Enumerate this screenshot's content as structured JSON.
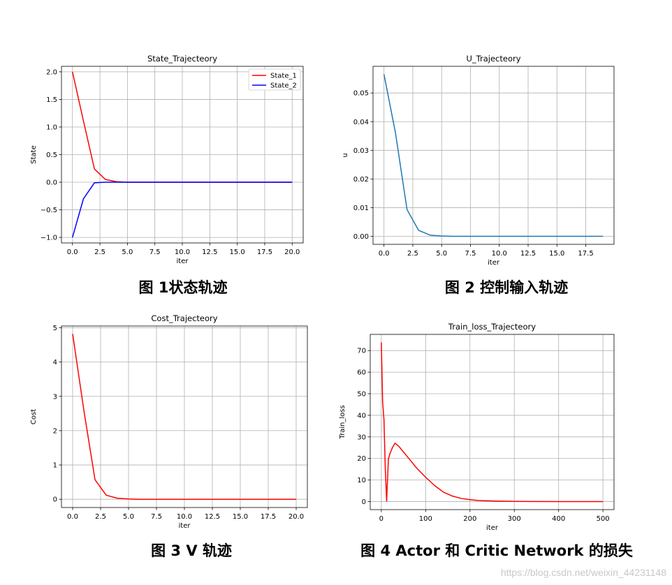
{
  "charts": [
    {
      "title": "State_Trajecteory",
      "xlabel": "iter",
      "ylabel": "State",
      "caption": "图 1状态轨迹"
    },
    {
      "title": "U_Trajecteory",
      "xlabel": "iter",
      "ylabel": "u",
      "caption": "图 2  控制输入轨迹"
    },
    {
      "title": "Cost_Trajecteory",
      "xlabel": "iter",
      "ylabel": "Cost",
      "caption": "图 3 V 轨迹"
    },
    {
      "title": "Train_loss_Trajecteory",
      "xlabel": "iter",
      "ylabel": "Train_loss",
      "caption": "图 4 Actor 和 Critic Network 的损失"
    }
  ],
  "watermark": "https://blog.csdn.net/weixin_44231148",
  "chart_data": [
    {
      "type": "line",
      "title": "State_Trajecteory",
      "xlabel": "iter",
      "ylabel": "State",
      "xlim": [
        -1.0,
        21.0
      ],
      "ylim": [
        -1.1,
        2.1
      ],
      "xticks": [
        0,
        2.5,
        5,
        7.5,
        10,
        12.5,
        15,
        17.5,
        20
      ],
      "xtick_labels": [
        "0.0",
        "2.5",
        "5.0",
        "7.5",
        "10.0",
        "12.5",
        "15.0",
        "17.5",
        "20.0"
      ],
      "yticks": [
        -1.0,
        -0.5,
        0.0,
        0.5,
        1.0,
        1.5,
        2.0
      ],
      "ytick_labels": [
        "−1.0",
        "−0.5",
        "0.0",
        "0.5",
        "1.0",
        "1.5",
        "2.0"
      ],
      "grid": true,
      "legend": "top-right",
      "series": [
        {
          "name": "State_1",
          "color": "#ff0000",
          "x": [
            0,
            1,
            2,
            3,
            4,
            5,
            6,
            7,
            8,
            9,
            10,
            11,
            12,
            13,
            14,
            15,
            16,
            17,
            18,
            19,
            20
          ],
          "y": [
            2.0,
            1.11,
            0.24,
            0.05,
            0.01,
            0,
            0,
            0,
            0,
            0,
            0,
            0,
            0,
            0,
            0,
            0,
            0,
            0,
            0,
            0,
            0
          ]
        },
        {
          "name": "State_2",
          "color": "#0000ff",
          "x": [
            0,
            1,
            2,
            3,
            4,
            5,
            6,
            7,
            8,
            9,
            10,
            11,
            12,
            13,
            14,
            15,
            16,
            17,
            18,
            19,
            20
          ],
          "y": [
            -1.0,
            -0.3,
            -0.01,
            0,
            0,
            0,
            0,
            0,
            0,
            0,
            0,
            0,
            0,
            0,
            0,
            0,
            0,
            0,
            0,
            0,
            0
          ]
        }
      ]
    },
    {
      "type": "line",
      "title": "U_Trajecteory",
      "xlabel": "iter",
      "ylabel": "u",
      "xlim": [
        -0.95,
        19.95
      ],
      "ylim": [
        -0.0028,
        0.0593
      ],
      "xticks": [
        0,
        2.5,
        5,
        7.5,
        10,
        12.5,
        15,
        17.5
      ],
      "xtick_labels": [
        "0.0",
        "2.5",
        "5.0",
        "7.5",
        "10.0",
        "12.5",
        "15.0",
        "17.5"
      ],
      "yticks": [
        0.0,
        0.01,
        0.02,
        0.03,
        0.04,
        0.05
      ],
      "ytick_labels": [
        "0.00",
        "0.01",
        "0.02",
        "0.03",
        "0.04",
        "0.05"
      ],
      "grid": true,
      "series": [
        {
          "color": "#1f77b4",
          "x": [
            0,
            1,
            2,
            3,
            4,
            5,
            6,
            7,
            8,
            9,
            10,
            11,
            12,
            13,
            14,
            15,
            16,
            17,
            18,
            19
          ],
          "y": [
            0.0565,
            0.036,
            0.0093,
            0.0021,
            0.0004,
            0.0001,
            0,
            0,
            0,
            0,
            0,
            0,
            0,
            0,
            0,
            0,
            0,
            0,
            0,
            0
          ]
        }
      ]
    },
    {
      "type": "line",
      "title": "Cost_Trajecteory",
      "xlabel": "iter",
      "ylabel": "Cost",
      "xlim": [
        -1.0,
        21.0
      ],
      "ylim": [
        -0.24,
        5.05
      ],
      "xticks": [
        0,
        2.5,
        5,
        7.5,
        10,
        12.5,
        15,
        17.5,
        20
      ],
      "xtick_labels": [
        "0.0",
        "2.5",
        "5.0",
        "7.5",
        "10.0",
        "12.5",
        "15.0",
        "17.5",
        "20.0"
      ],
      "yticks": [
        0,
        1,
        2,
        3,
        4,
        5
      ],
      "ytick_labels": [
        "0",
        "1",
        "2",
        "3",
        "4",
        "5"
      ],
      "grid": true,
      "series": [
        {
          "color": "#ff0000",
          "x": [
            0,
            1,
            2,
            3,
            4,
            5,
            6,
            7,
            8,
            9,
            10,
            11,
            12,
            13,
            14,
            15,
            16,
            17,
            18,
            19,
            20
          ],
          "y": [
            4.82,
            2.6,
            0.57,
            0.12,
            0.03,
            0.01,
            0,
            0,
            0,
            0,
            0,
            0,
            0,
            0,
            0,
            0,
            0,
            0,
            0,
            0,
            0
          ]
        }
      ]
    },
    {
      "type": "line",
      "title": "Train_loss_Trajecteory",
      "xlabel": "iter",
      "ylabel": "Train_loss",
      "xlim": [
        -25,
        525
      ],
      "ylim": [
        -3.7,
        77.5
      ],
      "xticks": [
        0,
        100,
        200,
        300,
        400,
        500
      ],
      "xtick_labels": [
        "0",
        "100",
        "200",
        "300",
        "400",
        "500"
      ],
      "yticks": [
        0,
        10,
        20,
        30,
        40,
        50,
        60,
        70
      ],
      "ytick_labels": [
        "0",
        "10",
        "20",
        "30",
        "40",
        "50",
        "60",
        "70"
      ],
      "grid": true,
      "series": [
        {
          "color": "#ff0000",
          "x": [
            0,
            3,
            6,
            9,
            12,
            16,
            20,
            25,
            31,
            40,
            60,
            80,
            100,
            120,
            140,
            160,
            180,
            200,
            220,
            250,
            300,
            350,
            400,
            450,
            500
          ],
          "y": [
            73.8,
            46,
            38,
            15,
            0.2,
            19.8,
            22.5,
            25,
            27.1,
            25.5,
            20.5,
            15.5,
            11.3,
            7.5,
            4.4,
            2.6,
            1.5,
            0.9,
            0.5,
            0.3,
            0.1,
            0.05,
            0.02,
            0.01,
            0
          ]
        }
      ]
    }
  ]
}
